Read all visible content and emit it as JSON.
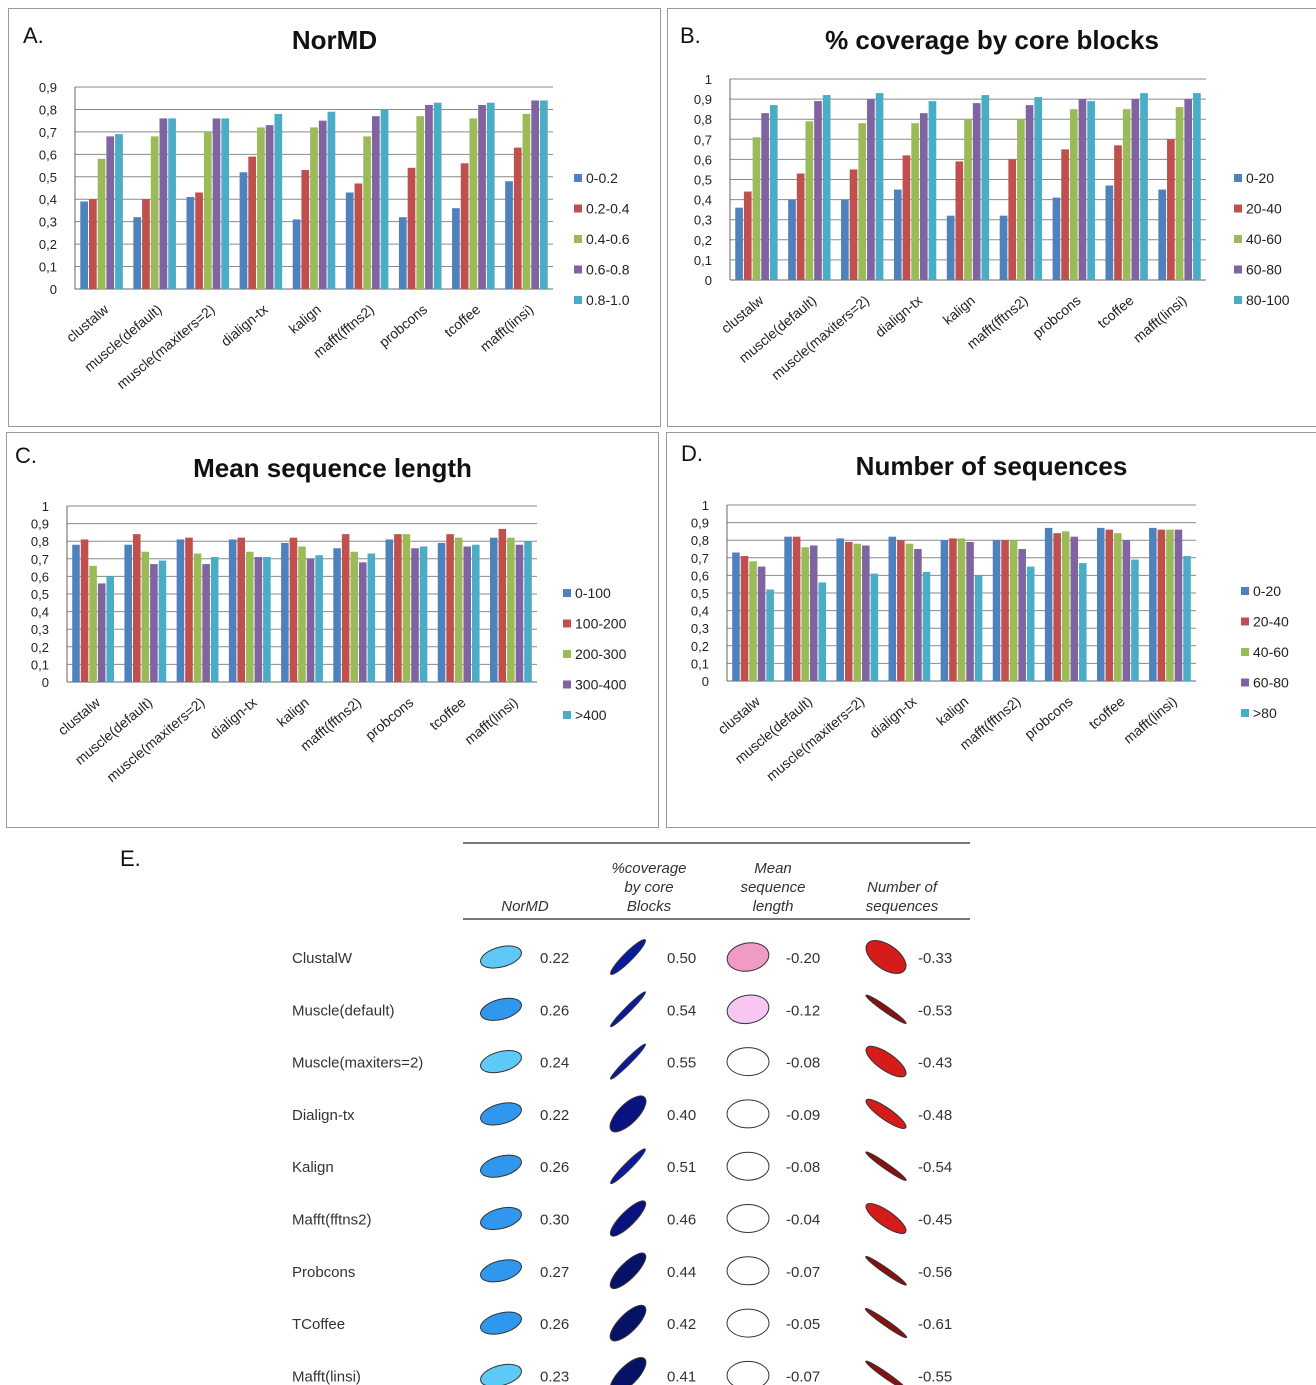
{
  "chart_data": [
    {
      "panel_label": "A.",
      "title": "NorMD",
      "type": "bar",
      "categories": [
        "clustalw",
        "muscle(default)",
        "muscle(maxiters=2)",
        "dialign-tx",
        "kalign",
        "mafft(fftns2)",
        "probcons",
        "tcoffee",
        "mafft(linsi)"
      ],
      "ylim": [
        0,
        0.9
      ],
      "yticks": [
        "0",
        "0,1",
        "0,2",
        "0,3",
        "0,4",
        "0,5",
        "0,6",
        "0,7",
        "0,8",
        "0,9"
      ],
      "series": [
        {
          "name": "0-0.2",
          "values": [
            0.39,
            0.32,
            0.41,
            0.52,
            0.31,
            0.43,
            0.32,
            0.36,
            0.48
          ]
        },
        {
          "name": "0.2-0.4",
          "values": [
            0.4,
            0.4,
            0.43,
            0.59,
            0.53,
            0.47,
            0.54,
            0.56,
            0.63
          ]
        },
        {
          "name": "0.4-0.6",
          "values": [
            0.58,
            0.68,
            0.7,
            0.72,
            0.72,
            0.68,
            0.77,
            0.76,
            0.78
          ]
        },
        {
          "name": "0.6-0.8",
          "values": [
            0.68,
            0.76,
            0.76,
            0.73,
            0.75,
            0.77,
            0.82,
            0.82,
            0.84
          ]
        },
        {
          "name": "0.8-1.0",
          "values": [
            0.69,
            0.76,
            0.76,
            0.78,
            0.79,
            0.8,
            0.83,
            0.83,
            0.84
          ]
        }
      ],
      "grid": true,
      "legend": "right"
    },
    {
      "panel_label": "B.",
      "title": "% coverage by core blocks",
      "type": "bar",
      "categories": [
        "clustalw",
        "muscle(default)",
        "muscle(maxiters=2)",
        "dialign-tx",
        "kalign",
        "mafft(fftns2)",
        "probcons",
        "tcoffee",
        "mafft(linsi)"
      ],
      "ylim": [
        0,
        1
      ],
      "yticks": [
        "0",
        "0,1",
        "0,2",
        "0,3",
        "0,4",
        "0,5",
        "0,6",
        "0,7",
        "0,8",
        "0,9",
        "1"
      ],
      "series": [
        {
          "name": "0-20",
          "values": [
            0.36,
            0.4,
            0.4,
            0.45,
            0.32,
            0.32,
            0.41,
            0.47,
            0.45
          ]
        },
        {
          "name": "20-40",
          "values": [
            0.44,
            0.53,
            0.55,
            0.62,
            0.59,
            0.6,
            0.65,
            0.67,
            0.7
          ]
        },
        {
          "name": "40-60",
          "values": [
            0.71,
            0.79,
            0.78,
            0.78,
            0.8,
            0.8,
            0.85,
            0.85,
            0.86
          ]
        },
        {
          "name": "60-80",
          "values": [
            0.83,
            0.89,
            0.9,
            0.83,
            0.88,
            0.87,
            0.9,
            0.9,
            0.9
          ]
        },
        {
          "name": "80-100",
          "values": [
            0.87,
            0.92,
            0.93,
            0.89,
            0.92,
            0.91,
            0.89,
            0.93,
            0.93
          ]
        }
      ],
      "grid": true,
      "legend": "right"
    },
    {
      "panel_label": "C.",
      "title": "Mean sequence length",
      "type": "bar",
      "categories": [
        "clustalw",
        "muscle(default)",
        "muscle(maxiters=2)",
        "dialign-tx",
        "kalign",
        "mafft(fftns2)",
        "probcons",
        "tcoffee",
        "mafft(linsi)"
      ],
      "ylim": [
        0,
        1
      ],
      "yticks": [
        "0",
        "0,1",
        "0,2",
        "0,3",
        "0,4",
        "0,5",
        "0,6",
        "0,7",
        "0,8",
        "0,9",
        "1"
      ],
      "series": [
        {
          "name": "0-100",
          "values": [
            0.78,
            0.78,
            0.81,
            0.81,
            0.79,
            0.76,
            0.81,
            0.79,
            0.82
          ]
        },
        {
          "name": "100-200",
          "values": [
            0.81,
            0.84,
            0.82,
            0.82,
            0.82,
            0.84,
            0.84,
            0.84,
            0.87
          ]
        },
        {
          "name": "200-300",
          "values": [
            0.66,
            0.74,
            0.73,
            0.74,
            0.77,
            0.74,
            0.84,
            0.82,
            0.82
          ]
        },
        {
          "name": "300-400",
          "values": [
            0.56,
            0.67,
            0.67,
            0.71,
            0.7,
            0.68,
            0.76,
            0.77,
            0.78
          ]
        },
        {
          "name": ">400",
          "values": [
            0.6,
            0.69,
            0.71,
            0.71,
            0.72,
            0.73,
            0.77,
            0.78,
            0.8
          ]
        }
      ],
      "grid": true,
      "legend": "right"
    },
    {
      "panel_label": "D.",
      "title": "Number of sequences",
      "type": "bar",
      "categories": [
        "clustalw",
        "muscle(default)",
        "muscle(maxiters=2)",
        "dialign-tx",
        "kalign",
        "mafft(fftns2)",
        "probcons",
        "tcoffee",
        "mafft(linsi)"
      ],
      "ylim": [
        0,
        1
      ],
      "yticks": [
        "0",
        "0,1",
        "0,2",
        "0,3",
        "0,4",
        "0,5",
        "0,6",
        "0,7",
        "0,8",
        "0,9",
        "1"
      ],
      "series": [
        {
          "name": "0-20",
          "values": [
            0.73,
            0.82,
            0.81,
            0.82,
            0.8,
            0.8,
            0.87,
            0.87,
            0.87
          ]
        },
        {
          "name": "20-40",
          "values": [
            0.71,
            0.82,
            0.79,
            0.8,
            0.81,
            0.8,
            0.84,
            0.86,
            0.86
          ]
        },
        {
          "name": "40-60",
          "values": [
            0.68,
            0.76,
            0.78,
            0.78,
            0.81,
            0.8,
            0.85,
            0.84,
            0.86
          ]
        },
        {
          "name": "60-80",
          "values": [
            0.65,
            0.77,
            0.77,
            0.75,
            0.79,
            0.75,
            0.82,
            0.8,
            0.86
          ]
        },
        {
          "name": ">80",
          "values": [
            0.52,
            0.56,
            0.61,
            0.62,
            0.6,
            0.65,
            0.67,
            0.69,
            0.71
          ]
        }
      ],
      "grid": true,
      "legend": "right"
    },
    {
      "panel_label": "E.",
      "type": "table",
      "columns": [
        "NorMD",
        "%coverage\nby core\nBlocks",
        "Mean\nsequence\nlength",
        "Number of\nsequences"
      ],
      "rows": [
        "ClustalW",
        "Muscle(default)",
        "Muscle(maxiters=2)",
        "Dialign-tx",
        "Kalign",
        "Mafft(fftns2)",
        "Probcons",
        "TCoffee",
        "Mafft(linsi)"
      ],
      "values": [
        [
          "0.22",
          "0.50",
          "-0.20",
          "-0.33"
        ],
        [
          "0.26",
          "0.54",
          "-0.12",
          "-0.53"
        ],
        [
          "0.24",
          "0.55",
          "-0.08",
          "-0.43"
        ],
        [
          "0.22",
          "0.40",
          "-0.09",
          "-0.48"
        ],
        [
          "0.26",
          "0.51",
          "-0.08",
          "-0.54"
        ],
        [
          "0.30",
          "0.46",
          "-0.04",
          "-0.45"
        ],
        [
          "0.27",
          "0.44",
          "-0.07",
          "-0.56"
        ],
        [
          "0.26",
          "0.42",
          "-0.05",
          "-0.61"
        ],
        [
          "0.23",
          "0.41",
          "-0.07",
          "-0.55"
        ]
      ],
      "glyph_fills": [
        [
          "#5ec8f6",
          "#0a1aa0",
          "#f29ac6",
          "#d61b1b"
        ],
        [
          "#2f98ee",
          "#0a1aa0",
          "#f8c6f2",
          "#8a0f0f"
        ],
        [
          "#5ec8f6",
          "#0a1aa0",
          "#ffffff",
          "#d61b1b"
        ],
        [
          "#2f98ee",
          "#0a1280",
          "#ffffff",
          "#d61b1b"
        ],
        [
          "#2f98ee",
          "#0a1aa0",
          "#ffffff",
          "#8a0f0f"
        ],
        [
          "#2f98ee",
          "#0a1280",
          "#ffffff",
          "#d61b1b"
        ],
        [
          "#2f98ee",
          "#061266",
          "#ffffff",
          "#8a0f0f"
        ],
        [
          "#2f98ee",
          "#061266",
          "#ffffff",
          "#8a0f0f"
        ],
        [
          "#5ec8f6",
          "#061266",
          "#ffffff",
          "#8a0f0f"
        ]
      ]
    }
  ],
  "colors": {
    "series": [
      "#4f81bd",
      "#c0504d",
      "#9bbb59",
      "#8064a2",
      "#4bacc6"
    ],
    "grid": "#8a8a8a"
  }
}
